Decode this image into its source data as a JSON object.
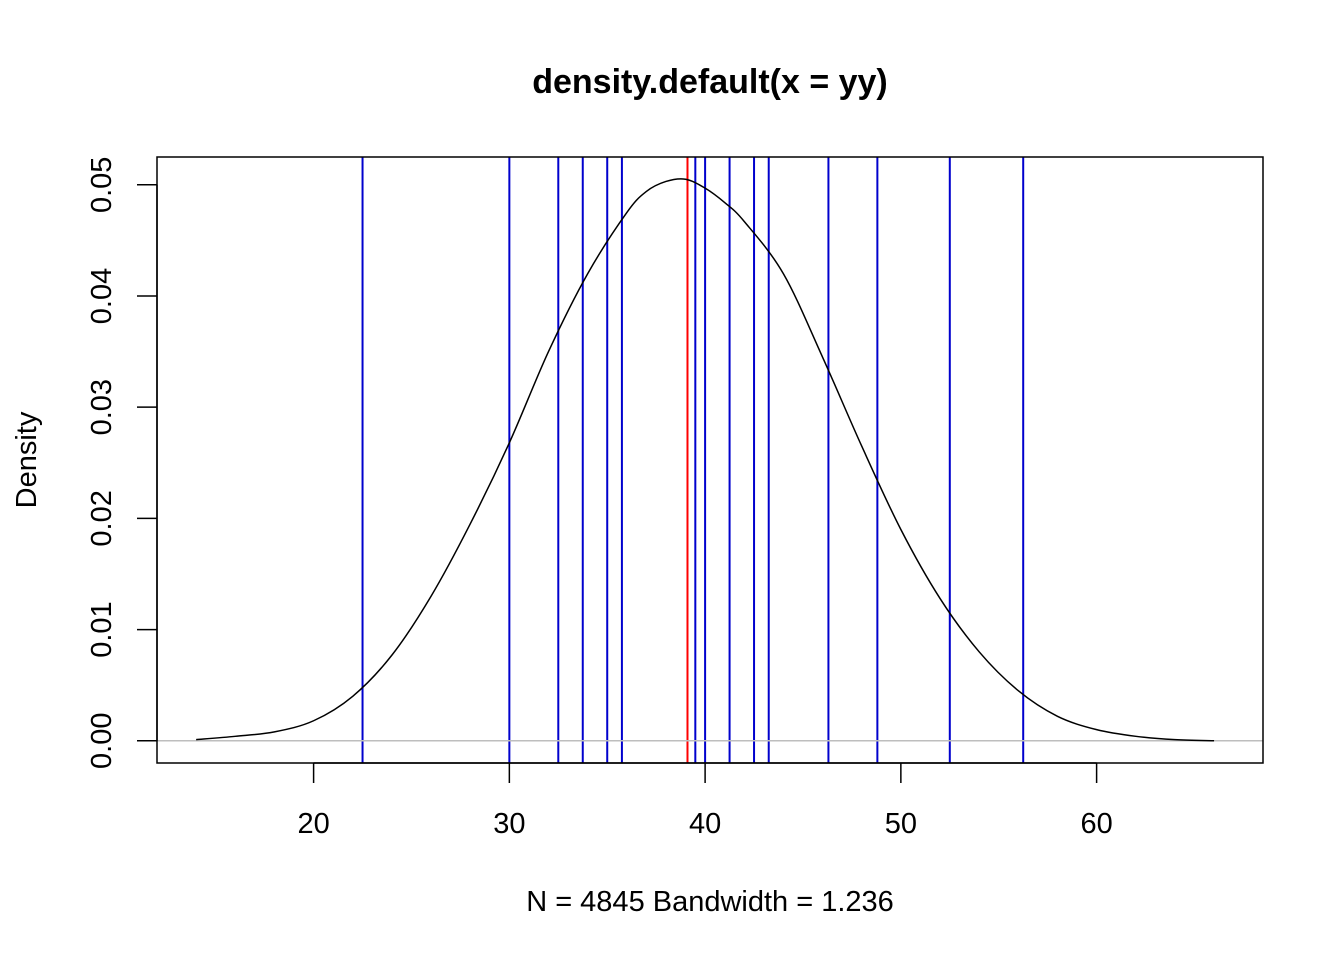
{
  "chart_data": {
    "type": "line",
    "title": "density.default(x = yy)",
    "xlabel": "N = 4845   Bandwidth = 1.236",
    "ylabel": "Density",
    "xlim": [
      12,
      68.5
    ],
    "ylim": [
      -0.002,
      0.0525
    ],
    "x_ticks": [
      20,
      30,
      40,
      50,
      60
    ],
    "x_tick_labels": [
      "20",
      "30",
      "40",
      "50",
      "60"
    ],
    "y_ticks": [
      0.0,
      0.01,
      0.02,
      0.03,
      0.04,
      0.05
    ],
    "y_tick_labels": [
      "0.00",
      "0.01",
      "0.02",
      "0.03",
      "0.04",
      "0.05"
    ],
    "grid": false,
    "series": [
      {
        "color": "#000000",
        "points": [
          [
            14.0,
            0.0001
          ],
          [
            16.0,
            0.0004
          ],
          [
            18.0,
            0.0008
          ],
          [
            20.0,
            0.0018
          ],
          [
            22.0,
            0.004
          ],
          [
            24.0,
            0.0077
          ],
          [
            26.0,
            0.013
          ],
          [
            28.0,
            0.0195
          ],
          [
            30.0,
            0.0268
          ],
          [
            32.0,
            0.035
          ],
          [
            34.0,
            0.042
          ],
          [
            36.0,
            0.0475
          ],
          [
            37.0,
            0.0494
          ],
          [
            38.0,
            0.0503
          ],
          [
            39.0,
            0.0505
          ],
          [
            40.0,
            0.0497
          ],
          [
            41.0,
            0.0484
          ],
          [
            42.0,
            0.0467
          ],
          [
            44.0,
            0.042
          ],
          [
            46.0,
            0.0345
          ],
          [
            48.0,
            0.0265
          ],
          [
            50.0,
            0.019
          ],
          [
            52.0,
            0.0128
          ],
          [
            54.0,
            0.008
          ],
          [
            56.0,
            0.0045
          ],
          [
            58.0,
            0.0022
          ],
          [
            60.0,
            0.001
          ],
          [
            62.0,
            0.0004
          ],
          [
            64.0,
            0.0001
          ],
          [
            66.0,
            0.0
          ]
        ]
      }
    ],
    "reference_line": {
      "y": 0.0,
      "color": "#bebebe"
    },
    "vertical_lines": [
      {
        "x": 22.5,
        "color": "#0000cd"
      },
      {
        "x": 30.0,
        "color": "#0000cd"
      },
      {
        "x": 32.5,
        "color": "#0000cd"
      },
      {
        "x": 33.75,
        "color": "#0000cd"
      },
      {
        "x": 35.0,
        "color": "#0000cd"
      },
      {
        "x": 35.75,
        "color": "#0000cd"
      },
      {
        "x": 39.1,
        "color": "#ff0000"
      },
      {
        "x": 39.5,
        "color": "#0000cd"
      },
      {
        "x": 40.0,
        "color": "#0000cd"
      },
      {
        "x": 41.25,
        "color": "#0000cd"
      },
      {
        "x": 42.5,
        "color": "#0000cd"
      },
      {
        "x": 43.25,
        "color": "#0000cd"
      },
      {
        "x": 46.3,
        "color": "#0000cd"
      },
      {
        "x": 48.8,
        "color": "#0000cd"
      },
      {
        "x": 52.5,
        "color": "#0000cd"
      },
      {
        "x": 56.25,
        "color": "#0000cd"
      }
    ]
  }
}
